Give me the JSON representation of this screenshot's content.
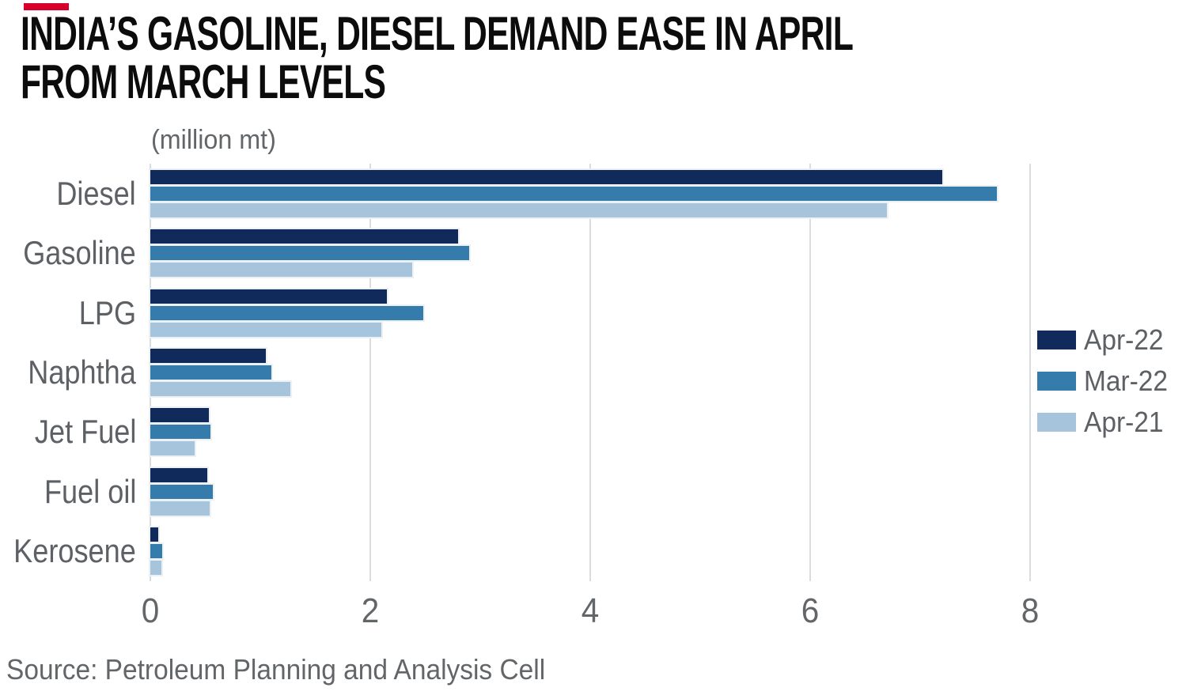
{
  "page": {
    "title_lines": [
      "INDIA’S GASOLINE, DIESEL DEMAND EASE IN APRIL",
      "FROM MARCH LEVELS"
    ],
    "source": "Source: Petroleum Planning and Analysis Cell",
    "accent_color": "#d6002a",
    "text_colors": {
      "title": "#0c0c0d",
      "labels": "#5d6064",
      "ticks": "#636669"
    }
  },
  "chart_data": {
    "type": "bar",
    "orientation": "horizontal",
    "title": "INDIA’S GASOLINE, DIESEL DEMAND EASE IN APRIL FROM MARCH LEVELS",
    "unit_label": "(million mt)",
    "xlabel": "",
    "ylabel": "",
    "categories": [
      "Diesel",
      "Gasoline",
      "LPG",
      "Naphtha",
      "Jet Fuel",
      "Fuel oil",
      "Kerosene"
    ],
    "series": [
      {
        "name": "Apr-22",
        "color": "#112a5c",
        "values": [
          7.2,
          2.8,
          2.15,
          1.05,
          0.53,
          0.52,
          0.07
        ]
      },
      {
        "name": "Mar-22",
        "color": "#357cac",
        "values": [
          7.7,
          2.9,
          2.48,
          1.1,
          0.55,
          0.57,
          0.11
        ]
      },
      {
        "name": "Apr-21",
        "color": "#a7c4dd",
        "values": [
          6.7,
          2.38,
          2.1,
          1.27,
          0.4,
          0.54,
          0.1
        ]
      }
    ],
    "xticks": [
      0,
      2,
      4,
      6,
      8
    ],
    "xlim": [
      0,
      8
    ],
    "grid": "vertical",
    "gridline_color": "#dbdddd",
    "legend_position": "right"
  }
}
